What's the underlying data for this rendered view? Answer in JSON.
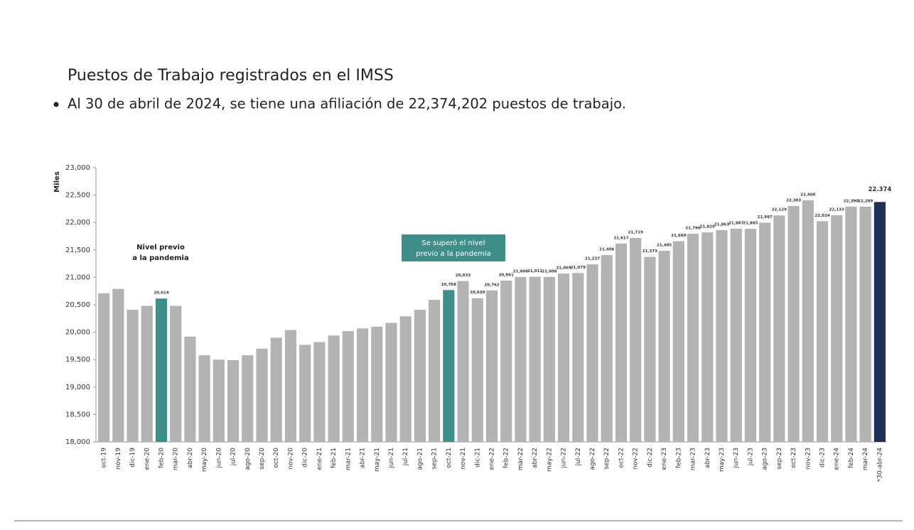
{
  "chart_data": {
    "type": "bar",
    "title": "Puestos de Trabajo registrados en el IMSS",
    "subtitle": "Al 30 de abril de 2024, se tiene una afiliación de 22,374,202 puestos de trabajo.",
    "y_label": "Miles",
    "annotations": [
      {
        "lines": [
          "Nivel previo",
          "a la pandemia"
        ]
      },
      {
        "lines": [
          "Se superó el nivel",
          "previo a la pandemia"
        ],
        "color": "#3e8e8a"
      }
    ],
    "categories": [
      "oct-19",
      "nov-19",
      "dic-19",
      "ene-20",
      "feb-20",
      "mar-20",
      "abr-20",
      "may-20",
      "jun-20",
      "jul-20",
      "ago-20",
      "sep-20",
      "oct-20",
      "nov-20",
      "dic-20",
      "ene-21",
      "feb-21",
      "mar-21",
      "abr-21",
      "may-21",
      "jun-21",
      "jul-21",
      "ago-21",
      "sep-21",
      "oct-21",
      "nov-21",
      "dic-21",
      "ene-22",
      "feb-22",
      "mar-22",
      "abr-22",
      "may-22",
      "jun-22",
      "jul-22",
      "ago-22",
      "sep-22",
      "oct-22",
      "nov-22",
      "dic-22",
      "ene-23",
      "feb-23",
      "mar-23",
      "abr-23",
      "may-23",
      "jun-23",
      "jul-23",
      "ago-23",
      "sep-23",
      "oct-23",
      "nov-23",
      "dic-23",
      "ene-24",
      "feb-24",
      "mar-24",
      "*30-abr-24"
    ],
    "values": [
      20710,
      20790,
      20410,
      20480,
      20614,
      20480,
      19920,
      19580,
      19500,
      19490,
      19580,
      19700,
      19900,
      20040,
      19770,
      19820,
      19940,
      20020,
      20070,
      20100,
      20170,
      20290,
      20410,
      20590,
      20768,
      20933,
      20620,
      20762,
      20941,
      21006,
      21011,
      21008,
      21069,
      21079,
      21237,
      21406,
      21617,
      21719,
      21373,
      21485,
      21660,
      21796,
      21820,
      21863,
      21887,
      21885,
      21997,
      22129,
      22303,
      22406,
      22024,
      22133,
      22290,
      22289,
      22374
    ],
    "value_labels": [
      null,
      null,
      null,
      null,
      "20,614",
      null,
      null,
      null,
      null,
      null,
      null,
      null,
      null,
      null,
      null,
      null,
      null,
      null,
      null,
      null,
      null,
      null,
      null,
      null,
      "20,768",
      "20,933",
      "20,620",
      "20,762",
      "20,941",
      "21,006",
      "21,011",
      "21,008",
      "21,069",
      "21,079",
      "21,237",
      "21,406",
      "21,617",
      "21,719",
      "21,373",
      "21,485",
      "21,660",
      "21,796",
      "21,820",
      "21,863",
      "21,887",
      "21,885",
      "21,997",
      "22,129",
      "22,303",
      "22,406",
      "22,024",
      "22,133",
      "22,290",
      "22,289",
      "22.374"
    ],
    "colors": [
      "#b3b3b3",
      "#b3b3b3",
      "#b3b3b3",
      "#b3b3b3",
      "#3e8e8a",
      "#b3b3b3",
      "#b3b3b3",
      "#b3b3b3",
      "#b3b3b3",
      "#b3b3b3",
      "#b3b3b3",
      "#b3b3b3",
      "#b3b3b3",
      "#b3b3b3",
      "#b3b3b3",
      "#b3b3b3",
      "#b3b3b3",
      "#b3b3b3",
      "#b3b3b3",
      "#b3b3b3",
      "#b3b3b3",
      "#b3b3b3",
      "#b3b3b3",
      "#b3b3b3",
      "#3e8e8a",
      "#b3b3b3",
      "#b3b3b3",
      "#b3b3b3",
      "#b3b3b3",
      "#b3b3b3",
      "#b3b3b3",
      "#b3b3b3",
      "#b3b3b3",
      "#b3b3b3",
      "#b3b3b3",
      "#b3b3b3",
      "#b3b3b3",
      "#b3b3b3",
      "#b3b3b3",
      "#b3b3b3",
      "#b3b3b3",
      "#b3b3b3",
      "#b3b3b3",
      "#b3b3b3",
      "#b3b3b3",
      "#b3b3b3",
      "#b3b3b3",
      "#b3b3b3",
      "#b3b3b3",
      "#b3b3b3",
      "#b3b3b3",
      "#b3b3b3",
      "#b3b3b3",
      "#b3b3b3",
      "#1c3059"
    ],
    "ylim": [
      18000,
      23000
    ],
    "yticks": [
      {
        "value": 18000,
        "label": "18,000"
      },
      {
        "value": 18500,
        "label": "18,500"
      },
      {
        "value": 19000,
        "label": "19,000"
      },
      {
        "value": 19500,
        "label": "19,500"
      },
      {
        "value": 20000,
        "label": "20,000"
      },
      {
        "value": 20500,
        "label": "20,500"
      },
      {
        "value": 21000,
        "label": "21,000"
      },
      {
        "value": 21500,
        "label": "21,500"
      },
      {
        "value": 22000,
        "label": "22,000"
      },
      {
        "value": 22500,
        "label": "22,500"
      },
      {
        "value": 23000,
        "label": "23,000"
      }
    ],
    "grid": false
  }
}
